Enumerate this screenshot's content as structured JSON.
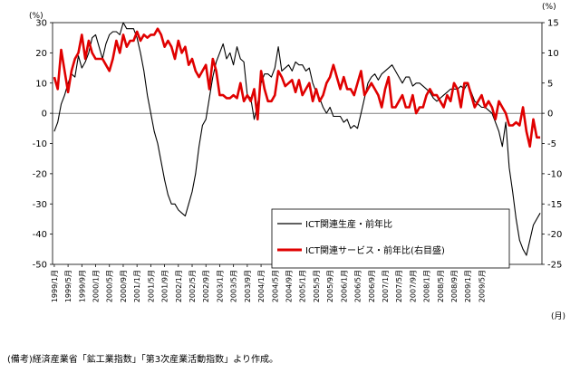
{
  "chart_data": {
    "type": "line",
    "title": "",
    "y_left": {
      "unit": "(%)",
      "range": [
        -50,
        30
      ],
      "step": 10
    },
    "y_right": {
      "unit": "(%)",
      "range": [
        -25,
        15
      ],
      "step": 5
    },
    "x_unit": "(月)",
    "x_labels": [
      "1999/1月",
      "1999/5月",
      "1999/9月",
      "2000/1月",
      "2000/5月",
      "2000/9月",
      "2001/1月",
      "2001/5月",
      "2001/9月",
      "2002/1月",
      "2002/5月",
      "2002/9月",
      "2003/1月",
      "2003/5月",
      "2003/9月",
      "2004/1月",
      "2004/5月",
      "2004/9月",
      "2005/1月",
      "2005/5月",
      "2005/9月",
      "2006/1月",
      "2006/5月",
      "2006/9月",
      "2007/1月",
      "2007/5月",
      "2007/9月",
      "2008/1月",
      "2008/5月",
      "2008/9月",
      "2009/1月",
      "2009/5月"
    ],
    "legend": {
      "production": "ICT関連生産・前年比",
      "services": "ICT関連サービス・前年比(右目盛)"
    },
    "colors": {
      "production": "#000000",
      "services": "#e00000"
    },
    "series": [
      {
        "key": "production",
        "name": "ICT関連生産・前年比",
        "axis": "left",
        "points": [
          [
            0,
            -6
          ],
          [
            1,
            -3
          ],
          [
            2,
            3
          ],
          [
            3,
            6
          ],
          [
            4,
            10
          ],
          [
            5,
            13
          ],
          [
            6,
            12
          ],
          [
            7,
            19
          ],
          [
            8,
            15
          ],
          [
            9,
            17
          ],
          [
            10,
            20
          ],
          [
            11,
            25
          ],
          [
            12,
            26
          ],
          [
            13,
            22
          ],
          [
            14,
            18
          ],
          [
            15,
            23
          ],
          [
            16,
            26
          ],
          [
            17,
            27
          ],
          [
            18,
            27
          ],
          [
            19,
            26
          ],
          [
            20,
            30
          ],
          [
            21,
            28
          ],
          [
            22,
            28
          ],
          [
            23,
            28
          ],
          [
            24,
            25
          ],
          [
            25,
            20
          ],
          [
            26,
            14
          ],
          [
            27,
            6
          ],
          [
            28,
            0
          ],
          [
            29,
            -6
          ],
          [
            30,
            -10
          ],
          [
            31,
            -16
          ],
          [
            32,
            -22
          ],
          [
            33,
            -27
          ],
          [
            34,
            -30
          ],
          [
            35,
            -30
          ],
          [
            36,
            -32
          ],
          [
            37,
            -33
          ],
          [
            38,
            -34
          ],
          [
            39,
            -30
          ],
          [
            40,
            -26
          ],
          [
            41,
            -20
          ],
          [
            42,
            -11
          ],
          [
            43,
            -4
          ],
          [
            44,
            -2
          ],
          [
            45,
            5
          ],
          [
            46,
            12
          ],
          [
            47,
            17
          ],
          [
            48,
            20
          ],
          [
            49,
            23
          ],
          [
            50,
            18
          ],
          [
            51,
            20
          ],
          [
            52,
            16
          ],
          [
            53,
            22
          ],
          [
            54,
            18
          ],
          [
            55,
            17
          ],
          [
            56,
            6
          ],
          [
            57,
            5
          ],
          [
            58,
            -2
          ],
          [
            59,
            3
          ],
          [
            60,
            10
          ],
          [
            61,
            13
          ],
          [
            62,
            13
          ],
          [
            63,
            12
          ],
          [
            64,
            15
          ],
          [
            65,
            22
          ],
          [
            66,
            14
          ],
          [
            67,
            15
          ],
          [
            68,
            16
          ],
          [
            69,
            14
          ],
          [
            70,
            17
          ],
          [
            71,
            16
          ],
          [
            72,
            16
          ],
          [
            73,
            14
          ],
          [
            74,
            15
          ],
          [
            75,
            10
          ],
          [
            76,
            7
          ],
          [
            77,
            5
          ],
          [
            78,
            2
          ],
          [
            79,
            0
          ],
          [
            80,
            2
          ],
          [
            81,
            -1
          ],
          [
            82,
            -1
          ],
          [
            83,
            -1
          ],
          [
            84,
            -3
          ],
          [
            85,
            -2
          ],
          [
            86,
            -5
          ],
          [
            87,
            -4
          ],
          [
            88,
            -5
          ],
          [
            89,
            0
          ],
          [
            90,
            5
          ],
          [
            91,
            10
          ],
          [
            92,
            12
          ],
          [
            93,
            13
          ],
          [
            94,
            11
          ],
          [
            95,
            13
          ],
          [
            96,
            14
          ],
          [
            97,
            15
          ],
          [
            98,
            16
          ],
          [
            99,
            14
          ],
          [
            100,
            12
          ],
          [
            101,
            10
          ],
          [
            102,
            12
          ],
          [
            103,
            12
          ],
          [
            104,
            9
          ],
          [
            105,
            10
          ],
          [
            106,
            10
          ],
          [
            107,
            9
          ],
          [
            108,
            8
          ],
          [
            109,
            7
          ],
          [
            110,
            5
          ],
          [
            111,
            4
          ],
          [
            112,
            5
          ],
          [
            113,
            6
          ],
          [
            114,
            7
          ],
          [
            115,
            8
          ],
          [
            116,
            8
          ],
          [
            117,
            8
          ],
          [
            118,
            9
          ],
          [
            119,
            8
          ],
          [
            120,
            10
          ],
          [
            121,
            7
          ],
          [
            122,
            4
          ],
          [
            123,
            3
          ],
          [
            124,
            2
          ],
          [
            125,
            2
          ],
          [
            126,
            1
          ],
          [
            127,
            0
          ],
          [
            128,
            -3
          ],
          [
            129,
            -6
          ],
          [
            130,
            -11
          ],
          [
            131,
            -3
          ],
          [
            132,
            -18
          ],
          [
            133,
            -26
          ],
          [
            134,
            -35
          ],
          [
            135,
            -42
          ],
          [
            136,
            -45
          ],
          [
            137,
            -47
          ],
          [
            138,
            -42
          ],
          [
            139,
            -37
          ],
          [
            140,
            -35
          ],
          [
            141,
            -33
          ]
        ]
      },
      {
        "key": "services",
        "name": "ICT関連サービス・前年比(右目盛)",
        "axis": "right",
        "points": [
          [
            0,
            6
          ],
          [
            1,
            4
          ],
          [
            2,
            10.5
          ],
          [
            3,
            7
          ],
          [
            4,
            3.5
          ],
          [
            5,
            7
          ],
          [
            6,
            9
          ],
          [
            7,
            10
          ],
          [
            8,
            13
          ],
          [
            9,
            9
          ],
          [
            10,
            12
          ],
          [
            11,
            10
          ],
          [
            12,
            9
          ],
          [
            13,
            9
          ],
          [
            14,
            9
          ],
          [
            15,
            8
          ],
          [
            16,
            7
          ],
          [
            17,
            9
          ],
          [
            18,
            12
          ],
          [
            19,
            10
          ],
          [
            20,
            13
          ],
          [
            21,
            11
          ],
          [
            22,
            12
          ],
          [
            23,
            12
          ],
          [
            24,
            13.5
          ],
          [
            25,
            12
          ],
          [
            26,
            13
          ],
          [
            27,
            12.5
          ],
          [
            28,
            13
          ],
          [
            29,
            13
          ],
          [
            30,
            14
          ],
          [
            31,
            13
          ],
          [
            32,
            11
          ],
          [
            33,
            12
          ],
          [
            34,
            11
          ],
          [
            35,
            9
          ],
          [
            36,
            12
          ],
          [
            37,
            10
          ],
          [
            38,
            11
          ],
          [
            39,
            8
          ],
          [
            40,
            9
          ],
          [
            41,
            7
          ],
          [
            42,
            6
          ],
          [
            43,
            7
          ],
          [
            44,
            8
          ],
          [
            45,
            4
          ],
          [
            46,
            9
          ],
          [
            47,
            7
          ],
          [
            48,
            3
          ],
          [
            49,
            3
          ],
          [
            50,
            2.5
          ],
          [
            51,
            2.5
          ],
          [
            52,
            3
          ],
          [
            53,
            2.5
          ],
          [
            54,
            5
          ],
          [
            55,
            2
          ],
          [
            56,
            3
          ],
          [
            57,
            2
          ],
          [
            58,
            4
          ],
          [
            59,
            -1
          ],
          [
            60,
            7
          ],
          [
            61,
            4
          ],
          [
            62,
            2
          ],
          [
            63,
            2
          ],
          [
            64,
            3
          ],
          [
            65,
            7
          ],
          [
            66,
            6
          ],
          [
            67,
            4.5
          ],
          [
            68,
            5
          ],
          [
            69,
            5.5
          ],
          [
            70,
            3.5
          ],
          [
            71,
            5.5
          ],
          [
            72,
            3
          ],
          [
            73,
            4
          ],
          [
            74,
            5
          ],
          [
            75,
            2
          ],
          [
            76,
            4
          ],
          [
            77,
            2
          ],
          [
            78,
            3
          ],
          [
            79,
            5
          ],
          [
            80,
            6
          ],
          [
            81,
            8
          ],
          [
            82,
            6
          ],
          [
            83,
            4
          ],
          [
            84,
            6
          ],
          [
            85,
            4
          ],
          [
            86,
            4
          ],
          [
            87,
            3
          ],
          [
            88,
            5
          ],
          [
            89,
            7
          ],
          [
            90,
            3
          ],
          [
            91,
            4
          ],
          [
            92,
            5
          ],
          [
            93,
            4
          ],
          [
            94,
            3
          ],
          [
            95,
            1
          ],
          [
            96,
            4
          ],
          [
            97,
            6
          ],
          [
            98,
            1
          ],
          [
            99,
            1
          ],
          [
            100,
            2
          ],
          [
            101,
            3
          ],
          [
            102,
            1
          ],
          [
            103,
            1
          ],
          [
            104,
            3
          ],
          [
            105,
            0
          ],
          [
            106,
            1
          ],
          [
            107,
            1
          ],
          [
            108,
            3
          ],
          [
            109,
            4
          ],
          [
            110,
            3
          ],
          [
            111,
            3
          ],
          [
            112,
            2
          ],
          [
            113,
            1
          ],
          [
            114,
            3
          ],
          [
            115,
            2
          ],
          [
            116,
            5
          ],
          [
            117,
            4
          ],
          [
            118,
            1
          ],
          [
            119,
            5
          ],
          [
            120,
            5
          ],
          [
            121,
            3
          ],
          [
            122,
            1
          ],
          [
            123,
            2
          ],
          [
            124,
            3
          ],
          [
            125,
            1
          ],
          [
            126,
            2
          ],
          [
            127,
            1
          ],
          [
            128,
            -1
          ],
          [
            129,
            2
          ],
          [
            130,
            1
          ],
          [
            131,
            0
          ],
          [
            132,
            -2
          ],
          [
            133,
            -2
          ],
          [
            134,
            -1.5
          ],
          [
            135,
            -2
          ],
          [
            136,
            1
          ],
          [
            137,
            -3
          ],
          [
            138,
            -5.5
          ],
          [
            139,
            -1
          ],
          [
            140,
            -4
          ],
          [
            141,
            -4
          ]
        ]
      }
    ]
  },
  "note": "(備考)経済産業省「鉱工業指数」「第3次産業活動指数」より作成。"
}
